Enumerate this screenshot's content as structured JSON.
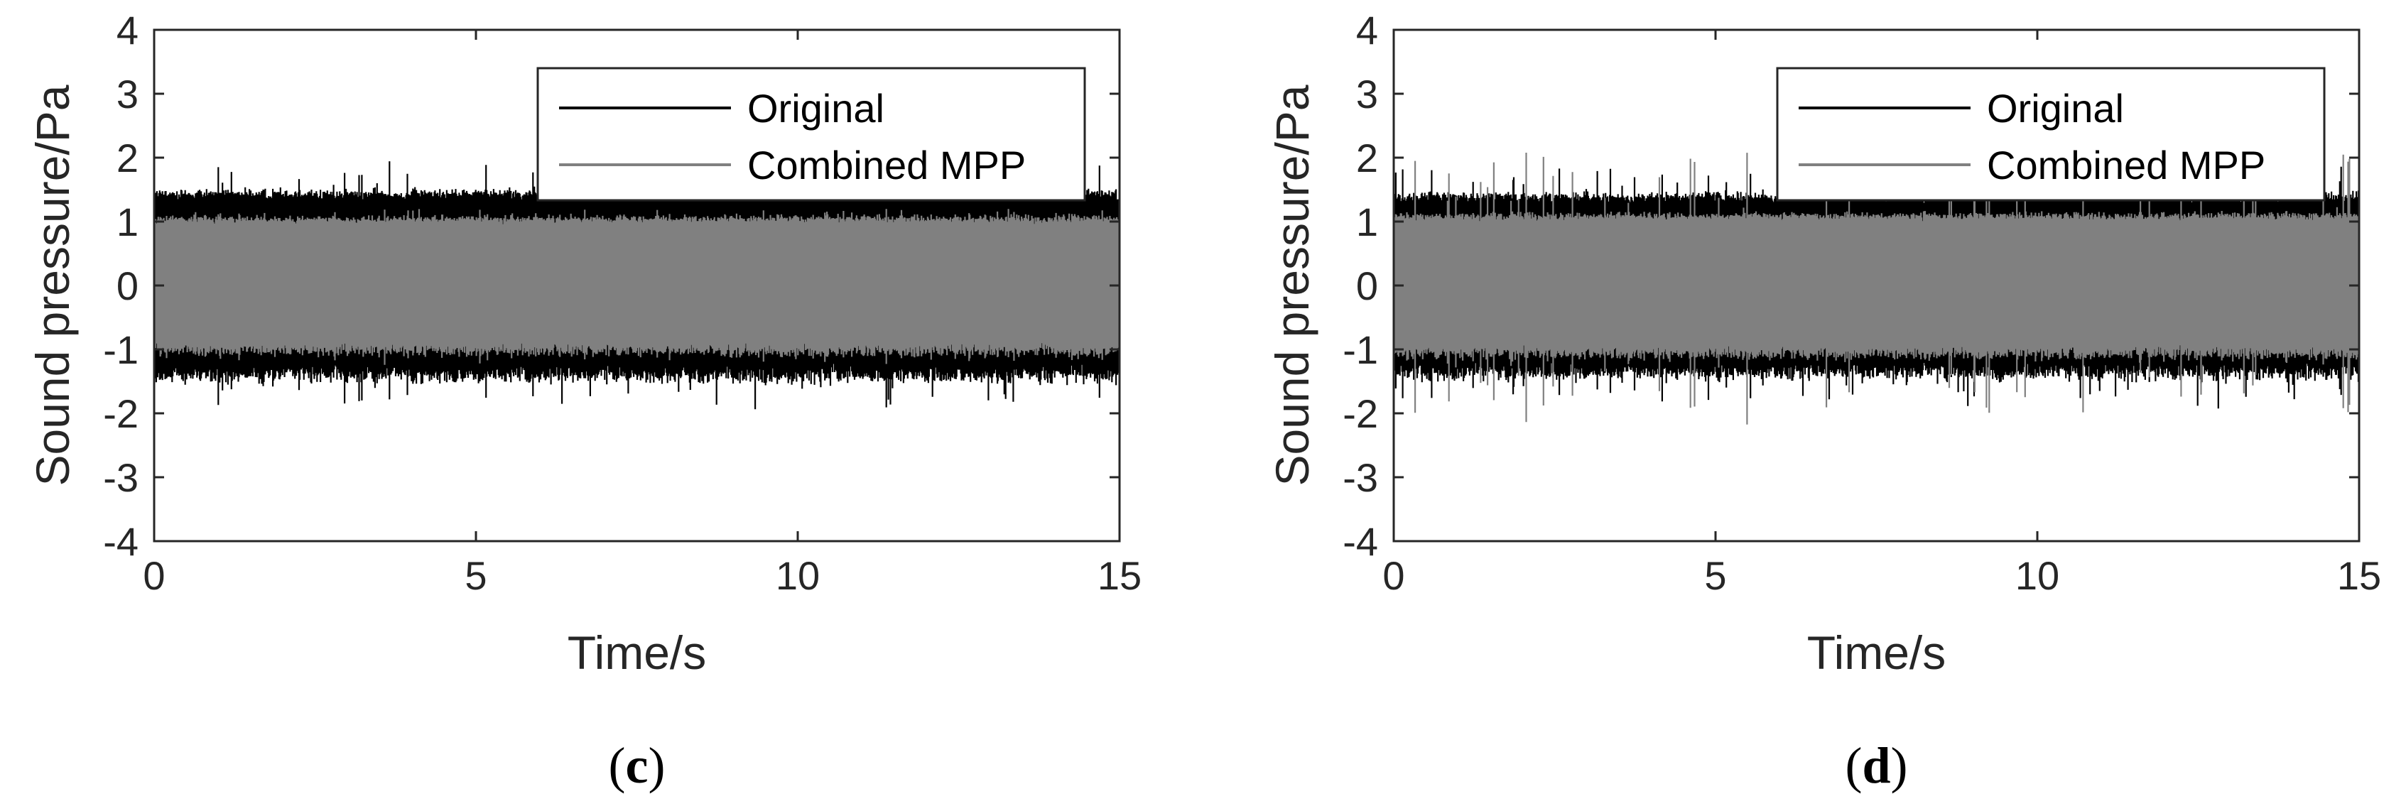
{
  "colors": {
    "original": "#000000",
    "combined": "#808080",
    "axes": "#262626",
    "background": "#ffffff"
  },
  "chart_data": [
    {
      "type": "line",
      "panel_label": "c",
      "title": "",
      "xlabel": "Time/s",
      "ylabel": "Sound pressure/Pa",
      "xlim": [
        0,
        15
      ],
      "ylim": [
        -4,
        4
      ],
      "xticks": [
        "0",
        "5",
        "10",
        "15"
      ],
      "yticks": [
        "-4",
        "-3",
        "-2",
        "-1",
        "0",
        "1",
        "2",
        "3",
        "4"
      ],
      "grid": false,
      "legend_position": "top-right",
      "series": [
        {
          "name": "Original",
          "color": "#000000",
          "signal": "broadband noise",
          "t_start": 0,
          "t_end": 15,
          "envelope_mean_amplitude": 1.45,
          "envelope_peak_amplitude": 1.95
        },
        {
          "name": "Combined MPP",
          "color": "#808080",
          "signal": "broadband noise",
          "t_start": 0,
          "t_end": 15,
          "envelope_mean_amplitude": 1.05,
          "envelope_peak_amplitude": 1.2
        }
      ]
    },
    {
      "type": "line",
      "panel_label": "d",
      "title": "",
      "xlabel": "Time/s",
      "ylabel": "Sound pressure/Pa",
      "xlim": [
        0,
        15
      ],
      "ylim": [
        -4,
        4
      ],
      "xticks": [
        "0",
        "5",
        "10",
        "15"
      ],
      "yticks": [
        "-4",
        "-3",
        "-2",
        "-1",
        "0",
        "1",
        "2",
        "3",
        "4"
      ],
      "grid": false,
      "legend_position": "top-right",
      "series": [
        {
          "name": "Original",
          "color": "#000000",
          "signal": "broadband noise",
          "t_start": 0,
          "t_end": 15,
          "envelope_mean_amplitude": 1.4,
          "envelope_peak_amplitude": 1.9
        },
        {
          "name": "Combined MPP",
          "color": "#808080",
          "signal": "broadband noise",
          "t_start": 0,
          "t_end": 15,
          "envelope_mean_amplitude": 1.1,
          "envelope_peak_amplitude": 2.1
        }
      ]
    }
  ]
}
